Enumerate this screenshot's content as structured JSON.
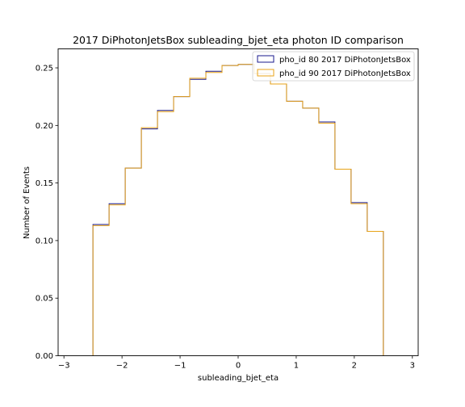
{
  "chart_data": {
    "type": "histogram-step",
    "title": "2017 DiPhotonJetsBox subleading_bjet_eta photon ID comparison",
    "xlabel": "subleading_bjet_eta",
    "ylabel": "Number of Events",
    "xlim": [
      -3.1,
      3.1
    ],
    "ylim": [
      0.0,
      0.2665
    ],
    "xticks": [
      -3,
      -2,
      -1,
      0,
      1,
      2,
      3
    ],
    "xtick_labels": [
      "−3",
      "−2",
      "−1",
      "0",
      "1",
      "2",
      "3"
    ],
    "yticks": [
      0.0,
      0.05,
      0.1,
      0.15,
      0.2,
      0.25
    ],
    "ytick_labels": [
      "0.00",
      "0.05",
      "0.10",
      "0.15",
      "0.20",
      "0.25"
    ],
    "grid": false,
    "legend_position": "top-right",
    "bin_edges": [
      -2.5,
      -2.2222,
      -1.9444,
      -1.6667,
      -1.3889,
      -1.1111,
      -0.8333,
      -0.5556,
      -0.2778,
      0.0,
      0.2778,
      0.5556,
      0.8333,
      1.1111,
      1.3889,
      1.6667,
      1.9444,
      2.2222,
      2.5
    ],
    "series": [
      {
        "name": "pho_id 80 2017 DiPhotonJetsBox",
        "color": "#1a1a8c",
        "values": [
          0.114,
          0.132,
          0.163,
          0.197,
          0.213,
          0.225,
          0.24,
          0.247,
          0.252,
          0.253,
          0.245,
          0.236,
          0.221,
          0.215,
          0.203,
          0.162,
          0.133,
          0.108
        ]
      },
      {
        "name": "pho_id 90 2017 DiPhotonJetsBox",
        "color": "#e8a317",
        "values": [
          0.113,
          0.131,
          0.163,
          0.198,
          0.212,
          0.225,
          0.241,
          0.246,
          0.252,
          0.253,
          0.245,
          0.236,
          0.221,
          0.215,
          0.202,
          0.162,
          0.132,
          0.108
        ]
      }
    ]
  }
}
